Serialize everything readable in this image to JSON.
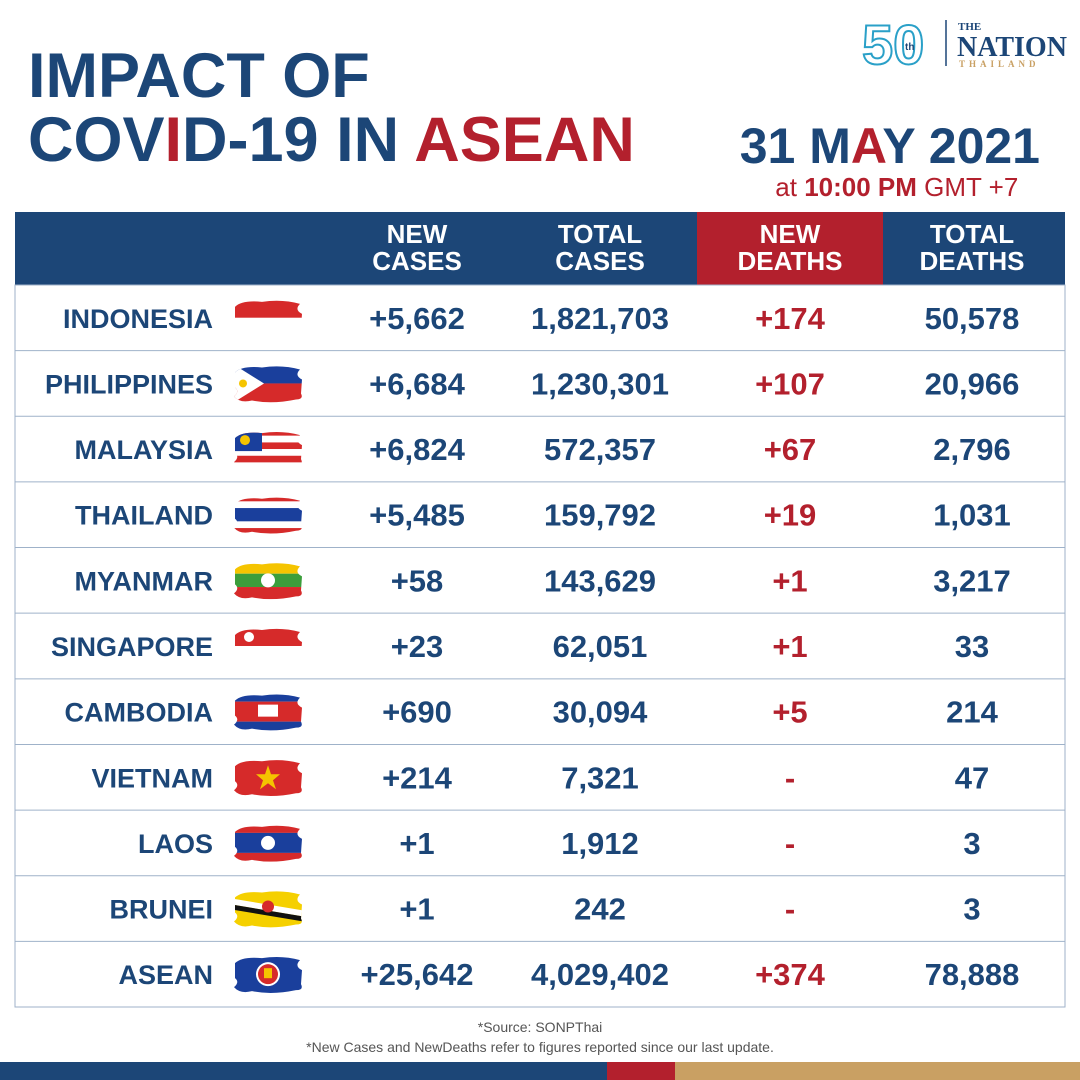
{
  "logo": {
    "number": "50",
    "suffix": "th",
    "the": "THE",
    "name": "NATION",
    "country": "THAILAND"
  },
  "header": {
    "title_line1": "IMPACT OF",
    "title_line2": [
      "COV",
      "I",
      "D-19 IN ",
      "ASEAN"
    ],
    "date": [
      "31 M",
      "A",
      "Y 2021"
    ],
    "time": [
      "at ",
      "10:00 PM",
      " GMT +7"
    ]
  },
  "table": {
    "columns": [
      [
        "NEW",
        "CASES"
      ],
      [
        "TOTAL",
        "CASES"
      ],
      [
        "NEW",
        "DEATHS"
      ],
      [
        "TOTAL",
        "DEATHS"
      ]
    ],
    "rows": [
      {
        "country": "INDONESIA",
        "new_cases": "+5,662",
        "total_cases": "1,821,703",
        "new_deaths": "+174",
        "total_deaths": "50,578"
      },
      {
        "country": "PHILIPPINES",
        "new_cases": "+6,684",
        "total_cases": "1,230,301",
        "new_deaths": "+107",
        "total_deaths": "20,966"
      },
      {
        "country": "MALAYSIA",
        "new_cases": "+6,824",
        "total_cases": "572,357",
        "new_deaths": "+67",
        "total_deaths": "2,796"
      },
      {
        "country": "THAILAND",
        "new_cases": "+5,485",
        "total_cases": "159,792",
        "new_deaths": "+19",
        "total_deaths": "1,031"
      },
      {
        "country": "MYANMAR",
        "new_cases": "+58",
        "total_cases": "143,629",
        "new_deaths": "+1",
        "total_deaths": "3,217"
      },
      {
        "country": "SINGAPORE",
        "new_cases": "+23",
        "total_cases": "62,051",
        "new_deaths": "+1",
        "total_deaths": "33"
      },
      {
        "country": "CAMBODIA",
        "new_cases": "+690",
        "total_cases": "30,094",
        "new_deaths": "+5",
        "total_deaths": "214"
      },
      {
        "country": "VIETNAM",
        "new_cases": "+214",
        "total_cases": "7,321",
        "new_deaths": "-",
        "total_deaths": "47"
      },
      {
        "country": "LAOS",
        "new_cases": "+1",
        "total_cases": "1,912",
        "new_deaths": "-",
        "total_deaths": "3"
      },
      {
        "country": "BRUNEI",
        "new_cases": "+1",
        "total_cases": "242",
        "new_deaths": "-",
        "total_deaths": "3"
      },
      {
        "country": "ASEAN",
        "new_cases": "+25,642",
        "total_cases": "4,029,402",
        "new_deaths": "+374",
        "total_deaths": "78,888"
      }
    ]
  },
  "footer": {
    "source": "*Source: SONPThai",
    "note": "*New Cases and NewDeaths refer to figures reported since our last update."
  }
}
